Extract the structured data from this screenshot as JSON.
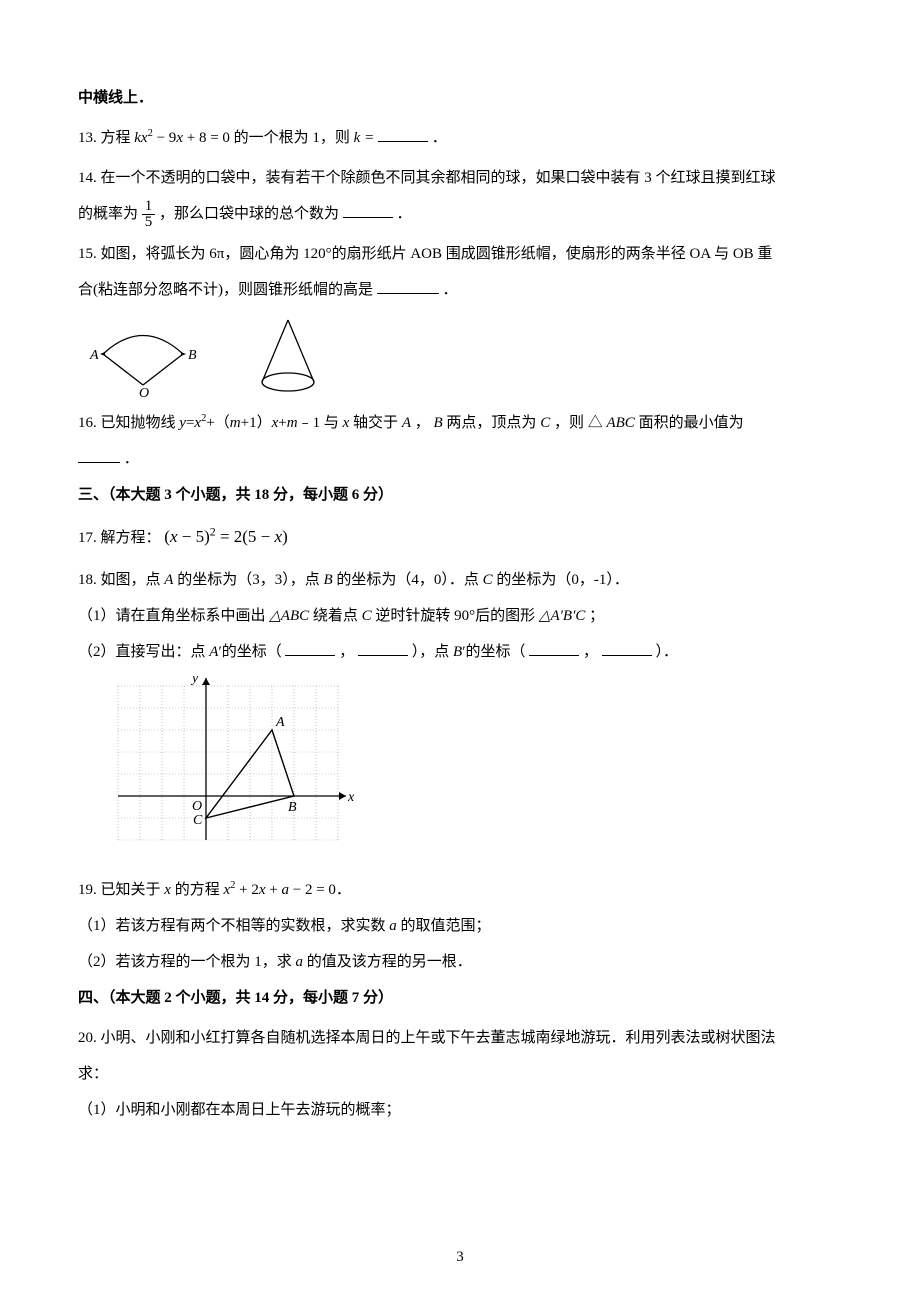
{
  "header": {
    "continued": "中横线上．"
  },
  "q13": {
    "label": "13.  方程 ",
    "eq_html": "<span class='italic'>kx</span><span class='sup rm'>2</span> <span class='rm'>− 9</span><span class='italic'>x</span> <span class='rm'>+ 8 = 0</span>",
    "mid": " 的一个根为 1，则 ",
    "kvar": "k = ",
    "tail": "．"
  },
  "q14": {
    "l1": "14.  在一个不透明的口袋中，装有若干个除颜色不同其余都相同的球，如果口袋中装有 3 个红球且摸到红球",
    "l2a": "的概率为 ",
    "frac": {
      "num": "1",
      "den": "5"
    },
    "l2b": " ，那么口袋中球的总个数为",
    "tail": "．"
  },
  "q15": {
    "l1": "15.  如图，将弧长为 6π，圆心角为 120°的扇形纸片 AOB 围成圆锥形纸帽，使扇形的两条半径 OA 与 OB 重",
    "l2": "合(粘连部分忽略不计)，则圆锥形纸帽的高是",
    "tail": "．",
    "sector": {
      "A": "A",
      "B": "B",
      "O": "O"
    },
    "svg_stroke": "#000000",
    "svg_fill": "none"
  },
  "q16": {
    "l1a": "16.  已知抛物线 ",
    "eq_html": "<span class='italic'>y</span>=<span class='italic'>x</span><span class='sup rm'>2</span>+（<span class='italic'>m</span>+1）<span class='italic'>x</span>+<span class='italic'>m</span>﹣1",
    "l1b": " 与 ",
    "xaxis": "x",
    "l1c": " 轴交于 ",
    "A": "A",
    "B": "B",
    "C": "C",
    "l1d": "，",
    "l1e": " 两点，顶点为 ",
    "l1f": "，则 △",
    "tri": "ABC",
    "l1g": " 面积的最小值为",
    "l2": "．"
  },
  "section3": {
    "title": "三、（本大题 3 个小题，共 18 分，每小题 6 分）"
  },
  "q17": {
    "label": "17.  解方程：",
    "eq_html": "<span class='rm'>(</span><span class='italic'>x</span> <span class='rm'>− 5)</span><span class='sup rm'>2</span> <span class='rm'>= 2(5 −</span> <span class='italic'>x</span><span class='rm'>)</span>"
  },
  "q18": {
    "l1": "18.  如图，点 A 的坐标为（3，3），点 B 的坐标为（4，0）．点 C 的坐标为（0，-1）．",
    "p1": "（1）请在直角坐标系中画出 △ABC 绕着点 C 逆时针旋转 90°后的图形 △A′B′C ；",
    "p2a": "（2）直接写出：点 A′的坐标（",
    "comma": "，",
    "p2b": "），点 B′的坐标（",
    "p2c": "）．",
    "axis": {
      "x": "x",
      "y": "y",
      "O": "O",
      "A": "A",
      "B": "B",
      "C": "C"
    },
    "coord": {
      "A": [
        3,
        3
      ],
      "B": [
        4,
        0
      ],
      "C": [
        0,
        -1
      ],
      "xrange": [
        -4,
        6
      ],
      "yrange": [
        -2,
        5
      ],
      "grid_color": "#999999",
      "axis_color": "#000000"
    }
  },
  "q19": {
    "l1a": "19.  已知关于 ",
    "xvar": "x",
    "l1b": " 的方程 ",
    "eq_html": "<span class='italic'>x</span><span class='sup rm'>2</span> <span class='rm'>+ 2</span><span class='italic'>x</span> <span class='rm'>+</span> <span class='italic'>a</span> <span class='rm'>− 2 = 0</span>．",
    "p1": "（1）若该方程有两个不相等的实数根，求实数 a 的取值范围；",
    "p2a": "（2）若该方程的一个根为 1，求 ",
    "avar": "a",
    "p2b": " 的值及该方程的另一根．"
  },
  "section4": {
    "title": "四、（本大题 2 个小题，共 14 分，每小题 7 分）"
  },
  "q20": {
    "l1": "20.  小明、小刚和小红打算各自随机选择本周日的上午或下午去董志城南绿地游玩．利用列表法或树状图法",
    "l2": "求：",
    "p1": "（1）小明和小刚都在本周日上午去游玩的概率；"
  },
  "page_number": "3"
}
